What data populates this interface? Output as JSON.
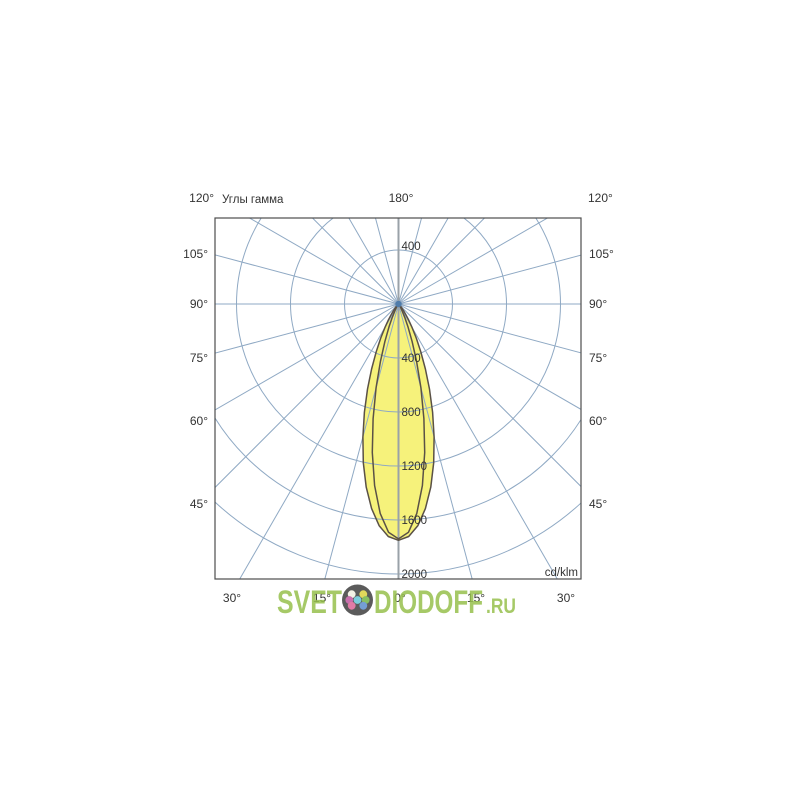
{
  "page": {
    "background": "#ffffff"
  },
  "chart_data": {
    "type": "area",
    "polar": true,
    "title": "Углы гамма",
    "unit": "cd/klm",
    "legend": "none",
    "grid": true,
    "radial_step_deg": 15,
    "ring_values": [
      400,
      800,
      1200,
      1600,
      2000
    ],
    "ring_label_top": "400",
    "ring_max": 2000,
    "angle_ticks": {
      "top": [
        "120°",
        "180°",
        "120°"
      ],
      "side": [
        "105°",
        "90°",
        "75°",
        "60°",
        "45°"
      ],
      "bottom": [
        "30°",
        "15°",
        "0°",
        "15°",
        "30°"
      ]
    },
    "series": [
      {
        "name": "beam-curve-wide",
        "points": [
          [
            0,
            1750
          ],
          [
            2.5,
            1724
          ],
          [
            5,
            1648
          ],
          [
            7.5,
            1529
          ],
          [
            10,
            1377
          ],
          [
            12.5,
            1203
          ],
          [
            15,
            1020
          ],
          [
            17.5,
            840
          ],
          [
            20,
            671
          ],
          [
            22.5,
            521
          ],
          [
            25,
            391
          ],
          [
            27.5,
            285
          ],
          [
            30,
            202
          ],
          [
            32.5,
            138
          ],
          [
            35,
            92
          ],
          [
            37.5,
            59
          ],
          [
            40,
            37
          ],
          [
            42.5,
            23
          ],
          [
            45,
            14
          ],
          [
            47.5,
            8
          ],
          [
            50,
            5
          ],
          [
            55,
            0
          ]
        ]
      },
      {
        "name": "beam-curve-narrow",
        "points": [
          [
            0,
            1740
          ],
          [
            2.5,
            1692
          ],
          [
            5,
            1557
          ],
          [
            7.5,
            1356
          ],
          [
            10,
            1117
          ],
          [
            12.5,
            870
          ],
          [
            15,
            641
          ],
          [
            17.5,
            447
          ],
          [
            20,
            295
          ],
          [
            22.5,
            184
          ],
          [
            25,
            109
          ],
          [
            27.5,
            61
          ],
          [
            30,
            32
          ],
          [
            32.5,
            16
          ],
          [
            35,
            8
          ],
          [
            37.5,
            3
          ],
          [
            40,
            1
          ],
          [
            45,
            0
          ]
        ]
      }
    ],
    "colors": {
      "grid": "#8fa9c4",
      "axis": "#9aa2a8",
      "border": "#4d4d4d",
      "curve_fill": "#f6f27b",
      "curve_outline": "#5a5146",
      "label": "#333333",
      "center_dot": "#4f7cab"
    }
  },
  "watermark": {
    "part1": "SVET",
    "part2": "DIODOFF",
    "part3": ".RU",
    "color": "#97c04d",
    "logo_circle_color": "#3f3f3f",
    "logo_dots": {
      "center": "#66c5d6",
      "top_left": "#f2efe2",
      "top_right": "#ddd23f",
      "left": "#c0579f",
      "right": "#74b447",
      "bottom_left": "#dc6497",
      "bottom_right": "#5c8ecd"
    }
  }
}
